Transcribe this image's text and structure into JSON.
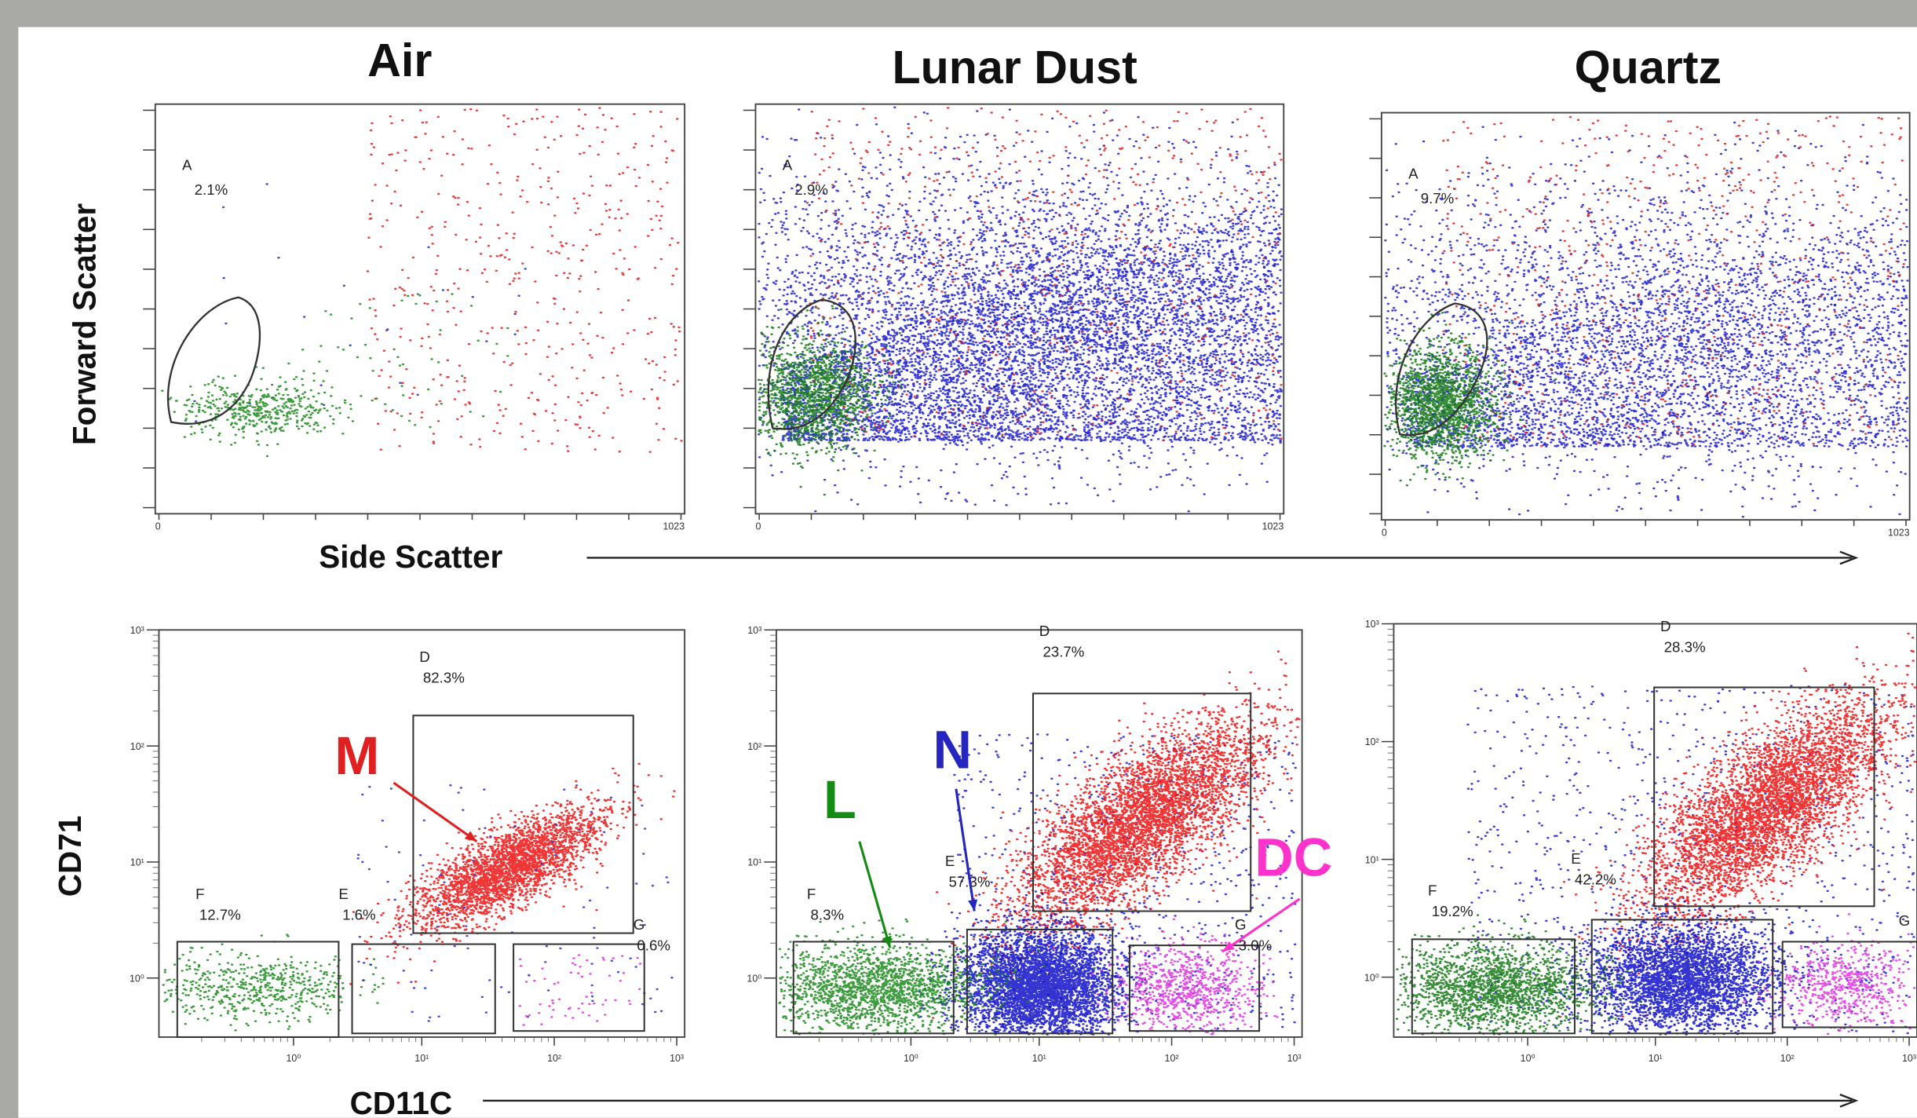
{
  "column_titles": [
    "Air",
    "Lunar Dust",
    "Quartz"
  ],
  "top_row": {
    "y_label": "Forward Scatter",
    "x_label": "Side Scatter",
    "panels": [
      {
        "gate_name": "A",
        "gate_percent": "2.1%",
        "x_min": "0",
        "x_max": "1023"
      },
      {
        "gate_name": "A",
        "gate_percent": "2.9%",
        "x_min": "0",
        "x_max": "1023"
      },
      {
        "gate_name": "A",
        "gate_percent": "9.7%",
        "x_min": "0",
        "x_max": "1023"
      }
    ]
  },
  "bottom_row": {
    "y_label": "CD71",
    "x_label": "CD11C",
    "y_ticks": [
      "10³",
      "10²",
      "10¹",
      "10⁰"
    ],
    "x_ticks": [
      "10⁰",
      "10¹",
      "10²",
      "10³"
    ],
    "panels": [
      {
        "gates": [
          {
            "name": "D",
            "percent": "82.3%"
          },
          {
            "name": "F",
            "percent": "12.7%"
          },
          {
            "name": "E",
            "percent": "1.6%"
          },
          {
            "name": "G",
            "percent": "0.6%"
          }
        ]
      },
      {
        "gates": [
          {
            "name": "D",
            "percent": "23.7%"
          },
          {
            "name": "F",
            "percent": "8.3%"
          },
          {
            "name": "E",
            "percent": "57.3%"
          },
          {
            "name": "G",
            "percent": "3.0%"
          }
        ]
      },
      {
        "gates": [
          {
            "name": "D",
            "percent": "28.3%"
          },
          {
            "name": "F",
            "percent": "19.2%"
          },
          {
            "name": "E",
            "percent": "42.2%"
          },
          {
            "name": "G"
          }
        ]
      }
    ]
  },
  "annotations": {
    "M": "M",
    "N": "N",
    "L": "L",
    "DC": "DC"
  }
}
